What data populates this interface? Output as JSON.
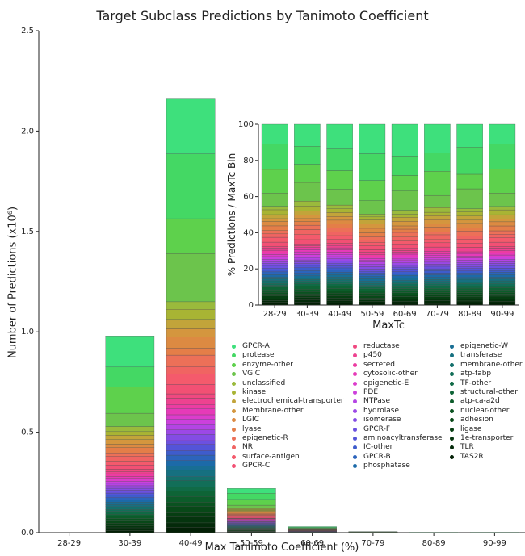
{
  "chart_data": [
    {
      "type": "bar",
      "title": "Target Subclass Predictions by Tanimoto Coefficient",
      "xlabel": "Max Tanimoto Coefficient (%)",
      "ylabel": "Number of Predictions (x10⁶)",
      "categories": [
        "28-29",
        "30-39",
        "40-49",
        "50-59",
        "60-69",
        "70-79",
        "80-89",
        "90-99"
      ],
      "totals": [
        0.0,
        0.98,
        2.16,
        0.22,
        0.03,
        0.005,
        0.002,
        0.002
      ],
      "ylim": [
        0,
        2.5
      ],
      "yticks": [
        "0.0",
        "0.5",
        "1.0",
        "1.5",
        "2.0",
        "2.5"
      ],
      "stacked": true,
      "grid": false,
      "legend_position": "inside lower right"
    },
    {
      "type": "bar",
      "ylabel": "% Predictions / MaxTc Bin",
      "xlabel": "MaxTc",
      "categories": [
        "28-29",
        "30-39",
        "40-49",
        "50-59",
        "60-69",
        "70-79",
        "80-89",
        "90-99"
      ],
      "ylim": [
        0,
        100
      ],
      "yticks": [
        "0",
        "20",
        "40",
        "60",
        "80",
        "100"
      ],
      "stacked": true,
      "normalized_to": 100,
      "grid": false
    }
  ],
  "legend": {
    "col1": [
      {
        "label": "GPCR-A",
        "color": "#3ee07c"
      },
      {
        "label": "protease",
        "color": "#44d864"
      },
      {
        "label": "enzyme-other",
        "color": "#5ed14c"
      },
      {
        "label": "VGIC",
        "color": "#6cc44c"
      },
      {
        "label": "unclassified",
        "color": "#9aba3c"
      },
      {
        "label": "kinase",
        "color": "#a8b434"
      },
      {
        "label": "electrochemical-transporter",
        "color": "#c2a43a"
      },
      {
        "label": "Membrane-other",
        "color": "#d4963e"
      },
      {
        "label": "LGIC",
        "color": "#dc8a42"
      },
      {
        "label": "lyase",
        "color": "#e47e48"
      },
      {
        "label": "epigenetic-R",
        "color": "#ec7058"
      },
      {
        "label": "NR",
        "color": "#f06462"
      },
      {
        "label": "surface-antigen",
        "color": "#f45a6c"
      },
      {
        "label": "GPCR-C",
        "color": "#f25074"
      }
    ],
    "col2": [
      {
        "label": "reductase",
        "color": "#f04880"
      },
      {
        "label": "p450",
        "color": "#ee4290"
      },
      {
        "label": "secreted",
        "color": "#ec3ca2"
      },
      {
        "label": "cytosolic-other",
        "color": "#e63ab8"
      },
      {
        "label": "epigenetic-E",
        "color": "#dc3ccc"
      },
      {
        "label": "PDE",
        "color": "#cc40dc"
      },
      {
        "label": "NTPase",
        "color": "#b444e4"
      },
      {
        "label": "hydrolase",
        "color": "#9c48e6"
      },
      {
        "label": "isomerase",
        "color": "#844ce4"
      },
      {
        "label": "GPCR-F",
        "color": "#6c50e0"
      },
      {
        "label": "aminoacyltransferase",
        "color": "#5454d8"
      },
      {
        "label": "IC-other",
        "color": "#3e5ccc"
      },
      {
        "label": "GPCR-B",
        "color": "#2c64bc"
      },
      {
        "label": "phosphatase",
        "color": "#1c6aa8"
      }
    ],
    "col3": [
      {
        "label": "epigenetic-W",
        "color": "#186e94"
      },
      {
        "label": "transferase",
        "color": "#167080"
      },
      {
        "label": "membrane-other",
        "color": "#14706c"
      },
      {
        "label": "atp-fabp",
        "color": "#126e58"
      },
      {
        "label": "TF-other",
        "color": "#106a46"
      },
      {
        "label": "structural-other",
        "color": "#0e6436"
      },
      {
        "label": "atp-ca-a2d",
        "color": "#0c5c2a"
      },
      {
        "label": "nuclear-other",
        "color": "#0a5220"
      },
      {
        "label": "adhesion",
        "color": "#084818"
      },
      {
        "label": "ligase",
        "color": "#063e12"
      },
      {
        "label": "1e-transporter",
        "color": "#05340e"
      },
      {
        "label": "TLR",
        "color": "#042a0a"
      },
      {
        "label": "TAS2R",
        "color": "#032006"
      }
    ]
  }
}
